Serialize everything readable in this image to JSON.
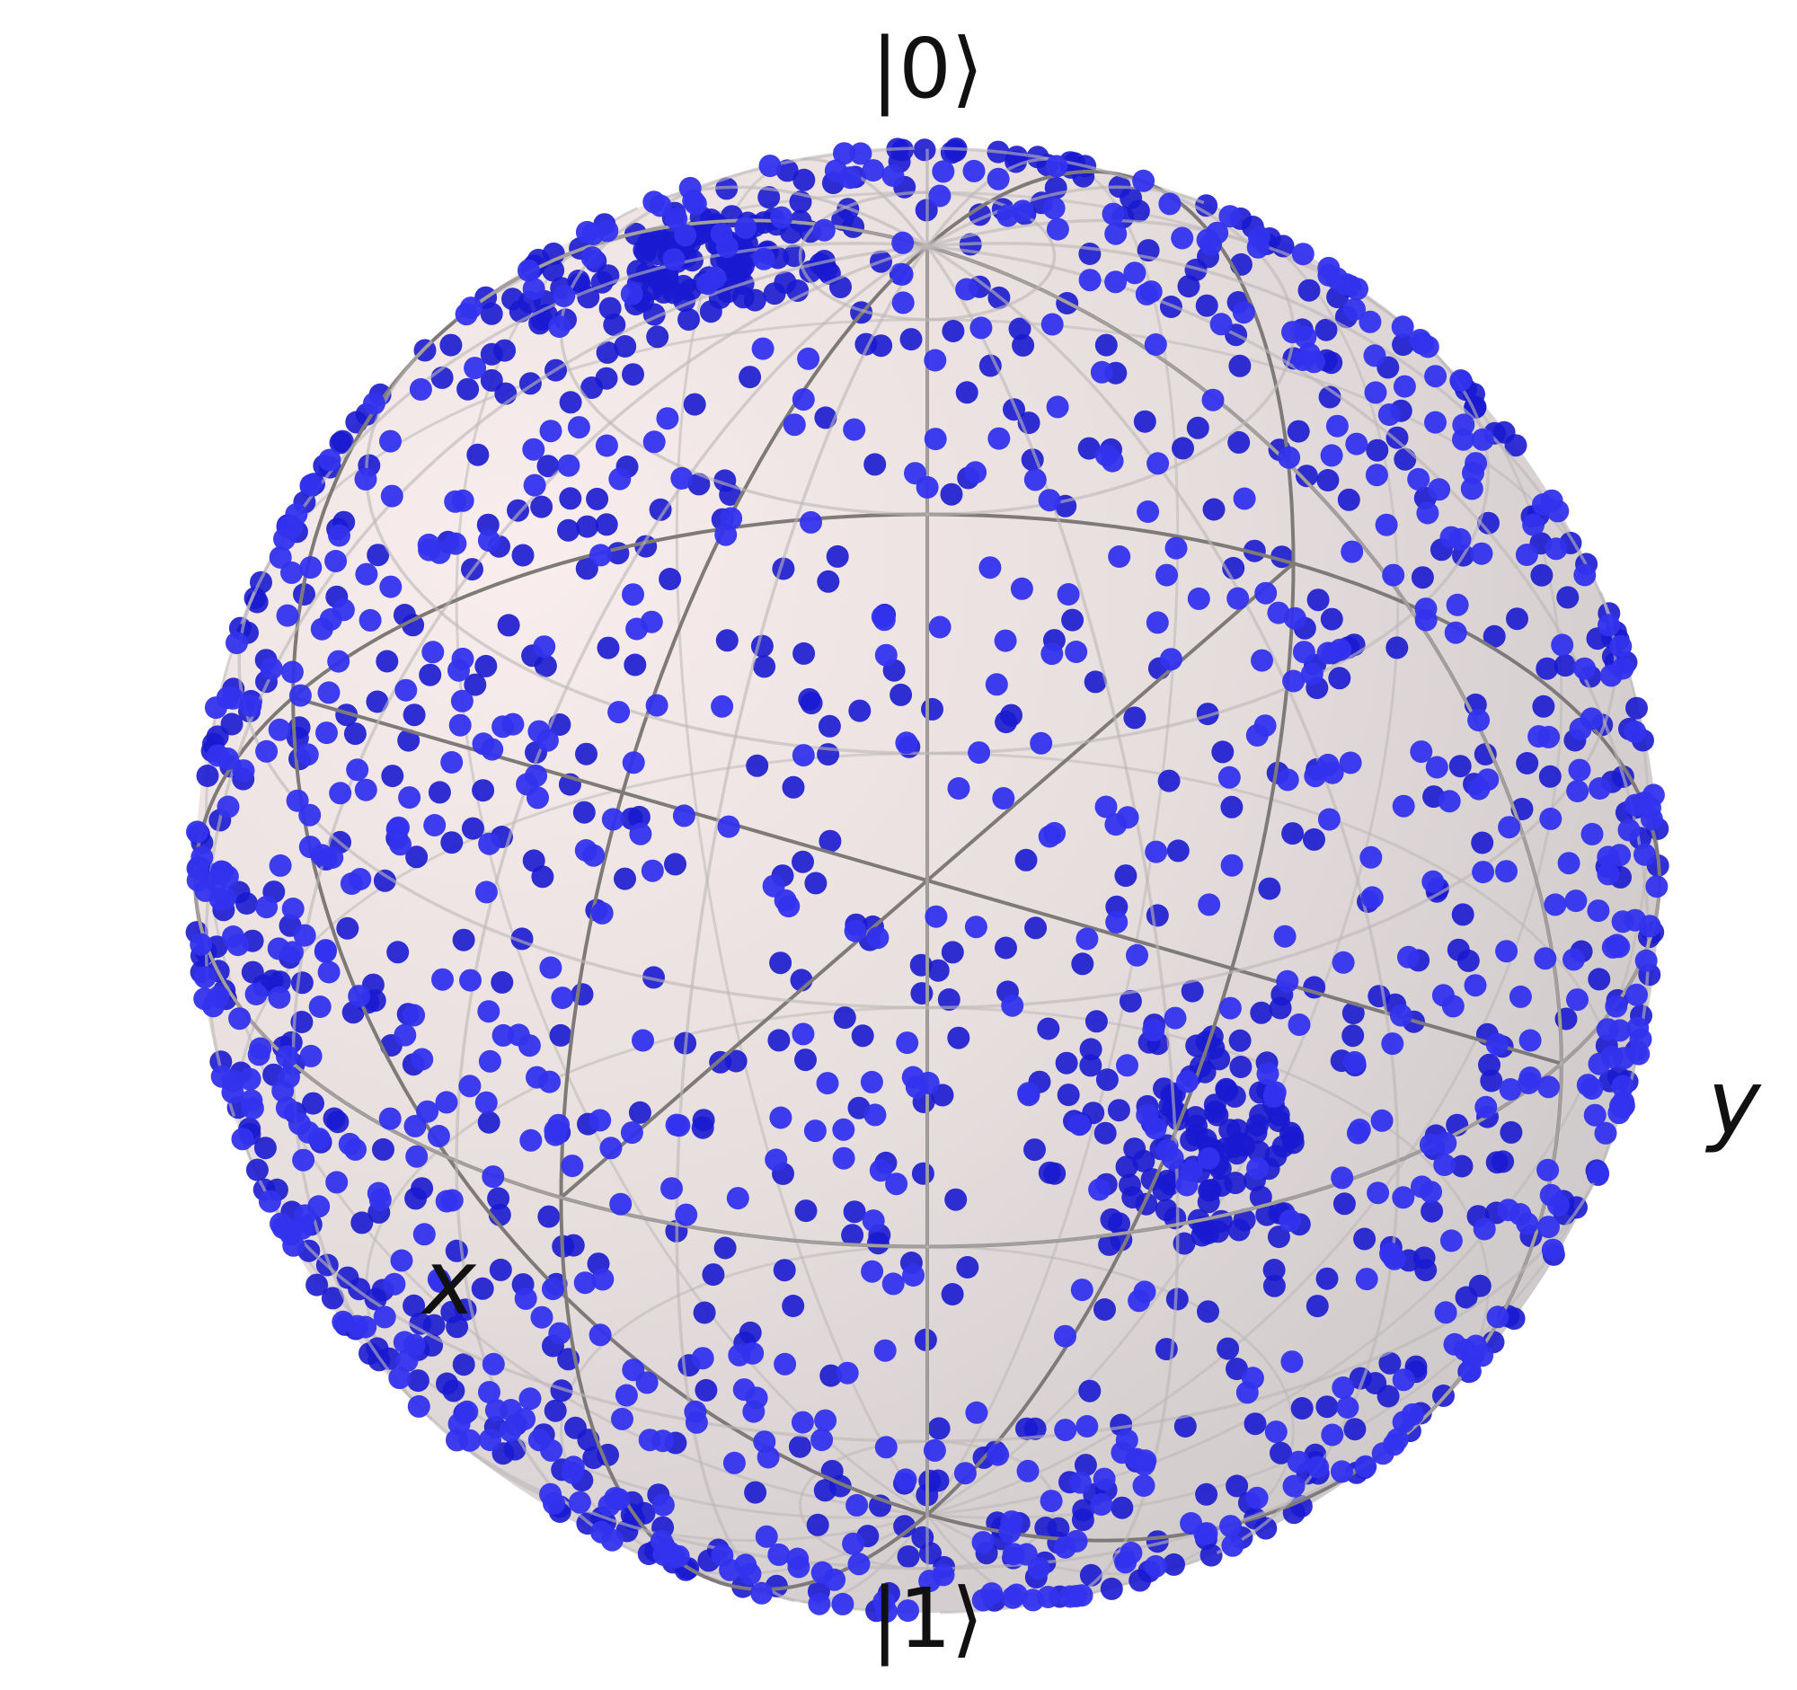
{
  "chart_data": {
    "type": "scatter",
    "projection": "bloch-sphere",
    "title": "",
    "labels": {
      "north": "|0⟩",
      "south": "|1⟩",
      "x_axis": "x",
      "y_axis": "y"
    },
    "view": {
      "azimuth_deg": -60,
      "elevation_deg": 30
    },
    "grid": true,
    "grid_wires": {
      "latitudes_deg": [
        -80,
        -60,
        -40,
        -20,
        0,
        20,
        40,
        60,
        80
      ],
      "longitudes_step_deg": 20
    },
    "colors": {
      "point": "#0000ff",
      "point_front": "#3333ee",
      "point_back": "#1a1ad0",
      "sphere_light": "#f9eded",
      "sphere_dark": "#c9c5c6",
      "frame": "#7f7a7a",
      "wire": "#bcb8b8",
      "label": "#111111"
    },
    "series": [
      {
        "marker": "circle",
        "generation": {
          "count": 1500,
          "distribution": "uniform-on-sphere",
          "seed": 7
        },
        "clusters": [
          {
            "x": 0.05,
            "y": 0.62,
            "z": -0.66,
            "count": 110,
            "spread": 0.08
          },
          {
            "x": -0.55,
            "y": 0.46,
            "z": 0.44,
            "count": 90,
            "spread": 0.07
          }
        ]
      }
    ]
  }
}
